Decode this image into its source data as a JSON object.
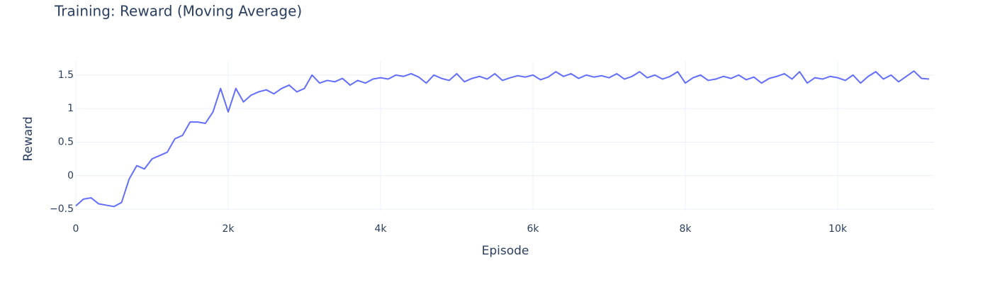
{
  "chart_data": {
    "type": "line",
    "title": "Training: Reward (Moving Average)",
    "x_label": "Episode",
    "y_label": "Reward",
    "x": [
      0,
      100,
      200,
      300,
      400,
      500,
      600,
      700,
      800,
      900,
      1000,
      1100,
      1200,
      1300,
      1400,
      1500,
      1600,
      1700,
      1800,
      1900,
      2000,
      2100,
      2200,
      2300,
      2400,
      2500,
      2600,
      2700,
      2800,
      2900,
      3000,
      3100,
      3200,
      3300,
      3400,
      3500,
      3600,
      3700,
      3800,
      3900,
      4000,
      4100,
      4200,
      4300,
      4400,
      4500,
      4600,
      4700,
      4800,
      4900,
      5000,
      5100,
      5200,
      5300,
      5400,
      5500,
      5600,
      5700,
      5800,
      5900,
      6000,
      6100,
      6200,
      6300,
      6400,
      6500,
      6600,
      6700,
      6800,
      6900,
      7000,
      7100,
      7200,
      7300,
      7400,
      7500,
      7600,
      7700,
      7800,
      7900,
      8000,
      8100,
      8200,
      8300,
      8400,
      8500,
      8600,
      8700,
      8800,
      8900,
      9000,
      9100,
      9200,
      9300,
      9400,
      9500,
      9600,
      9700,
      9800,
      9900,
      10000,
      10100,
      10200,
      10300,
      10400,
      10500,
      10600,
      10700,
      10800,
      10900,
      11000,
      11100,
      11200
    ],
    "series": [
      {
        "color": "#636efa",
        "values": [
          -0.45,
          -0.35,
          -0.33,
          -0.42,
          -0.44,
          -0.46,
          -0.4,
          -0.05,
          0.15,
          0.1,
          0.25,
          0.3,
          0.35,
          0.55,
          0.6,
          0.8,
          0.8,
          0.78,
          0.95,
          1.3,
          0.95,
          1.3,
          1.1,
          1.2,
          1.25,
          1.28,
          1.22,
          1.3,
          1.35,
          1.25,
          1.3,
          1.5,
          1.38,
          1.42,
          1.4,
          1.45,
          1.35,
          1.42,
          1.38,
          1.44,
          1.46,
          1.44,
          1.5,
          1.48,
          1.52,
          1.47,
          1.38,
          1.5,
          1.45,
          1.42,
          1.52,
          1.4,
          1.45,
          1.48,
          1.44,
          1.52,
          1.42,
          1.46,
          1.49,
          1.47,
          1.5,
          1.43,
          1.47,
          1.55,
          1.48,
          1.52,
          1.45,
          1.5,
          1.47,
          1.49,
          1.46,
          1.52,
          1.44,
          1.48,
          1.55,
          1.46,
          1.5,
          1.44,
          1.48,
          1.55,
          1.38,
          1.46,
          1.5,
          1.42,
          1.44,
          1.48,
          1.45,
          1.5,
          1.43,
          1.47,
          1.38,
          1.45,
          1.48,
          1.52,
          1.44,
          1.55,
          1.38,
          1.46,
          1.44,
          1.48,
          1.46,
          1.42,
          1.5,
          1.38,
          1.48,
          1.55,
          1.44,
          1.5,
          1.4,
          1.48,
          1.56,
          1.45,
          1.44
        ]
      }
    ],
    "xlim": [
      0,
      11265
    ],
    "ylim": [
      -0.52,
      1.71
    ],
    "xticks": [
      0,
      {
        "value": 2000,
        "label": "2k"
      },
      {
        "value": 4000,
        "label": "4k"
      },
      {
        "value": 6000,
        "label": "6k"
      },
      {
        "value": 8000,
        "label": "8k"
      },
      {
        "value": 10000,
        "label": "10k"
      }
    ],
    "yticks": [
      {
        "value": -0.5,
        "label": "−0.5"
      },
      0,
      0.5,
      1,
      1.5
    ],
    "grid": true
  }
}
